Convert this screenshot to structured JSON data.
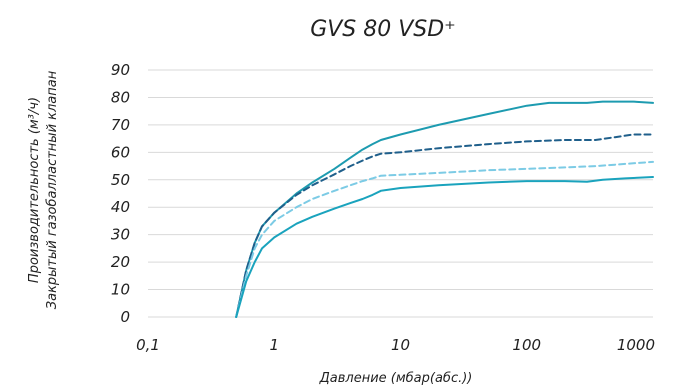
{
  "chart_data": {
    "type": "line",
    "title": "GVS 80 VSD⁺",
    "xlabel": "Давление (мбар(абс.))",
    "ylabel": [
      "Производительность (м³/ч)",
      "Закрытый газобалластный клапан"
    ],
    "x_scale": "log",
    "xlim": [
      0.1,
      1000
    ],
    "ylim": [
      0,
      90
    ],
    "x_ticks": [
      0.1,
      1,
      10,
      100,
      1000
    ],
    "x_tick_labels": [
      "0,1",
      "1",
      "10",
      "100",
      "1000"
    ],
    "y_ticks": [
      0,
      10,
      20,
      30,
      40,
      50,
      60,
      70,
      80,
      90
    ],
    "y_tick_labels": [
      "0",
      "10",
      "20",
      "30",
      "40",
      "50",
      "60",
      "70",
      "80",
      "90"
    ],
    "grid": "horizontal",
    "legend": "none",
    "series": [
      {
        "color": "#1d9bb0",
        "style": "solid",
        "points": [
          [
            0.5,
            0
          ],
          [
            0.6,
            17
          ],
          [
            0.7,
            27
          ],
          [
            0.8,
            33
          ],
          [
            1,
            38
          ],
          [
            1.5,
            45
          ],
          [
            2,
            49
          ],
          [
            3,
            54
          ],
          [
            4,
            58
          ],
          [
            5,
            61
          ],
          [
            6,
            63
          ],
          [
            7,
            64.5
          ],
          [
            10,
            66.5
          ],
          [
            20,
            70
          ],
          [
            50,
            74
          ],
          [
            100,
            77
          ],
          [
            150,
            78
          ],
          [
            300,
            78
          ],
          [
            400,
            78.5
          ],
          [
            700,
            78.5
          ],
          [
            1000,
            78
          ]
        ]
      },
      {
        "color": "#1f5f8b",
        "style": "dashed",
        "points": [
          [
            0.5,
            0
          ],
          [
            0.6,
            17
          ],
          [
            0.7,
            27
          ],
          [
            0.8,
            33
          ],
          [
            1,
            38
          ],
          [
            1.5,
            44.5
          ],
          [
            2,
            48
          ],
          [
            3,
            52
          ],
          [
            4,
            55
          ],
          [
            5,
            57
          ],
          [
            6,
            58.5
          ],
          [
            7,
            59.5
          ],
          [
            10,
            60
          ],
          [
            20,
            61.5
          ],
          [
            50,
            63
          ],
          [
            100,
            64
          ],
          [
            200,
            64.5
          ],
          [
            350,
            64.5
          ],
          [
            500,
            65.5
          ],
          [
            700,
            66.5
          ],
          [
            1000,
            66.5
          ]
        ]
      },
      {
        "color": "#7ccbe5",
        "style": "dashed",
        "points": [
          [
            0.5,
            0
          ],
          [
            0.6,
            15
          ],
          [
            0.7,
            25
          ],
          [
            0.8,
            30
          ],
          [
            1,
            35
          ],
          [
            1.5,
            40
          ],
          [
            2,
            43
          ],
          [
            3,
            46
          ],
          [
            4,
            48
          ],
          [
            5,
            49.5
          ],
          [
            6,
            50.5
          ],
          [
            7,
            51.5
          ],
          [
            10,
            51.8
          ],
          [
            20,
            52.5
          ],
          [
            50,
            53.5
          ],
          [
            100,
            54
          ],
          [
            200,
            54.5
          ],
          [
            350,
            55
          ],
          [
            500,
            55.5
          ],
          [
            700,
            56
          ],
          [
            1000,
            56.5
          ]
        ]
      },
      {
        "color": "#1aa3bd",
        "style": "solid",
        "points": [
          [
            0.5,
            0
          ],
          [
            0.6,
            13
          ],
          [
            0.7,
            20
          ],
          [
            0.8,
            25
          ],
          [
            1,
            29
          ],
          [
            1.5,
            34
          ],
          [
            2,
            36.5
          ],
          [
            3,
            39.5
          ],
          [
            4,
            41.5
          ],
          [
            5,
            43
          ],
          [
            6,
            44.5
          ],
          [
            7,
            46
          ],
          [
            10,
            47
          ],
          [
            20,
            48
          ],
          [
            50,
            49
          ],
          [
            100,
            49.5
          ],
          [
            200,
            49.5
          ],
          [
            300,
            49.3
          ],
          [
            400,
            50
          ],
          [
            600,
            50.5
          ],
          [
            1000,
            51
          ]
        ]
      }
    ]
  }
}
